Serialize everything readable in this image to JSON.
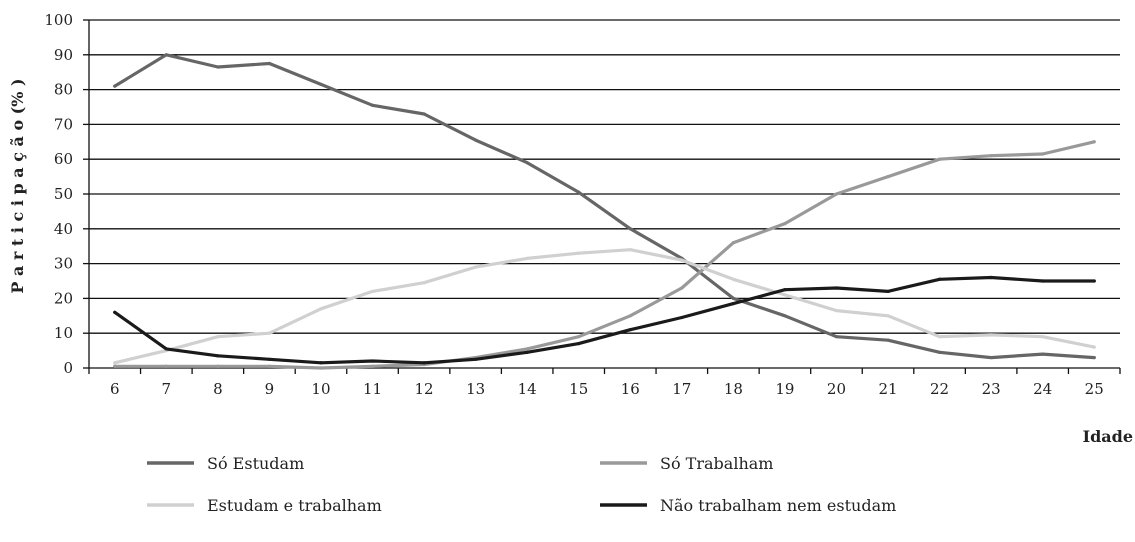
{
  "chart_data": {
    "type": "line",
    "ylabel": "P a r t i c i p a ç ã o  (% )",
    "xlabel": "Idade",
    "ylim": [
      0,
      100
    ],
    "yticks": [
      0,
      10,
      20,
      30,
      40,
      50,
      60,
      70,
      80,
      90,
      100
    ],
    "x": [
      6,
      7,
      8,
      9,
      10,
      11,
      12,
      13,
      14,
      15,
      16,
      17,
      18,
      19,
      20,
      21,
      22,
      23,
      24,
      25
    ],
    "grid": "horizontal",
    "legend_position": "bottom",
    "series": [
      {
        "name": "Só Estudam",
        "color": "#666666",
        "values": [
          81,
          90,
          86.5,
          87.5,
          81.5,
          75.5,
          73,
          65.5,
          59,
          50.5,
          40,
          31.5,
          20,
          15,
          9,
          8,
          4.5,
          3,
          4,
          3
        ]
      },
      {
        "name": "Só Trabalham",
        "color": "#999999",
        "values": [
          0.5,
          0.5,
          0.5,
          0.5,
          0,
          0.5,
          1,
          3,
          5.5,
          9,
          15,
          23,
          36,
          41.5,
          50,
          55,
          60,
          61,
          61.5,
          65
        ]
      },
      {
        "name": "Estudam e trabalham",
        "color": "#d0d0d0",
        "values": [
          1.5,
          5,
          9,
          10,
          17,
          22,
          24.5,
          29,
          31.5,
          33,
          34,
          31,
          25.5,
          21,
          16.5,
          15,
          9,
          9.5,
          9,
          6
        ]
      },
      {
        "name": "Não trabalham nem estudam",
        "color": "#1a1a1a",
        "values": [
          16,
          5.5,
          3.5,
          2.5,
          1.5,
          2,
          1.5,
          2.5,
          4.5,
          7,
          11,
          14.5,
          18.5,
          22.5,
          23,
          22,
          25.5,
          26,
          25,
          25
        ]
      }
    ]
  }
}
